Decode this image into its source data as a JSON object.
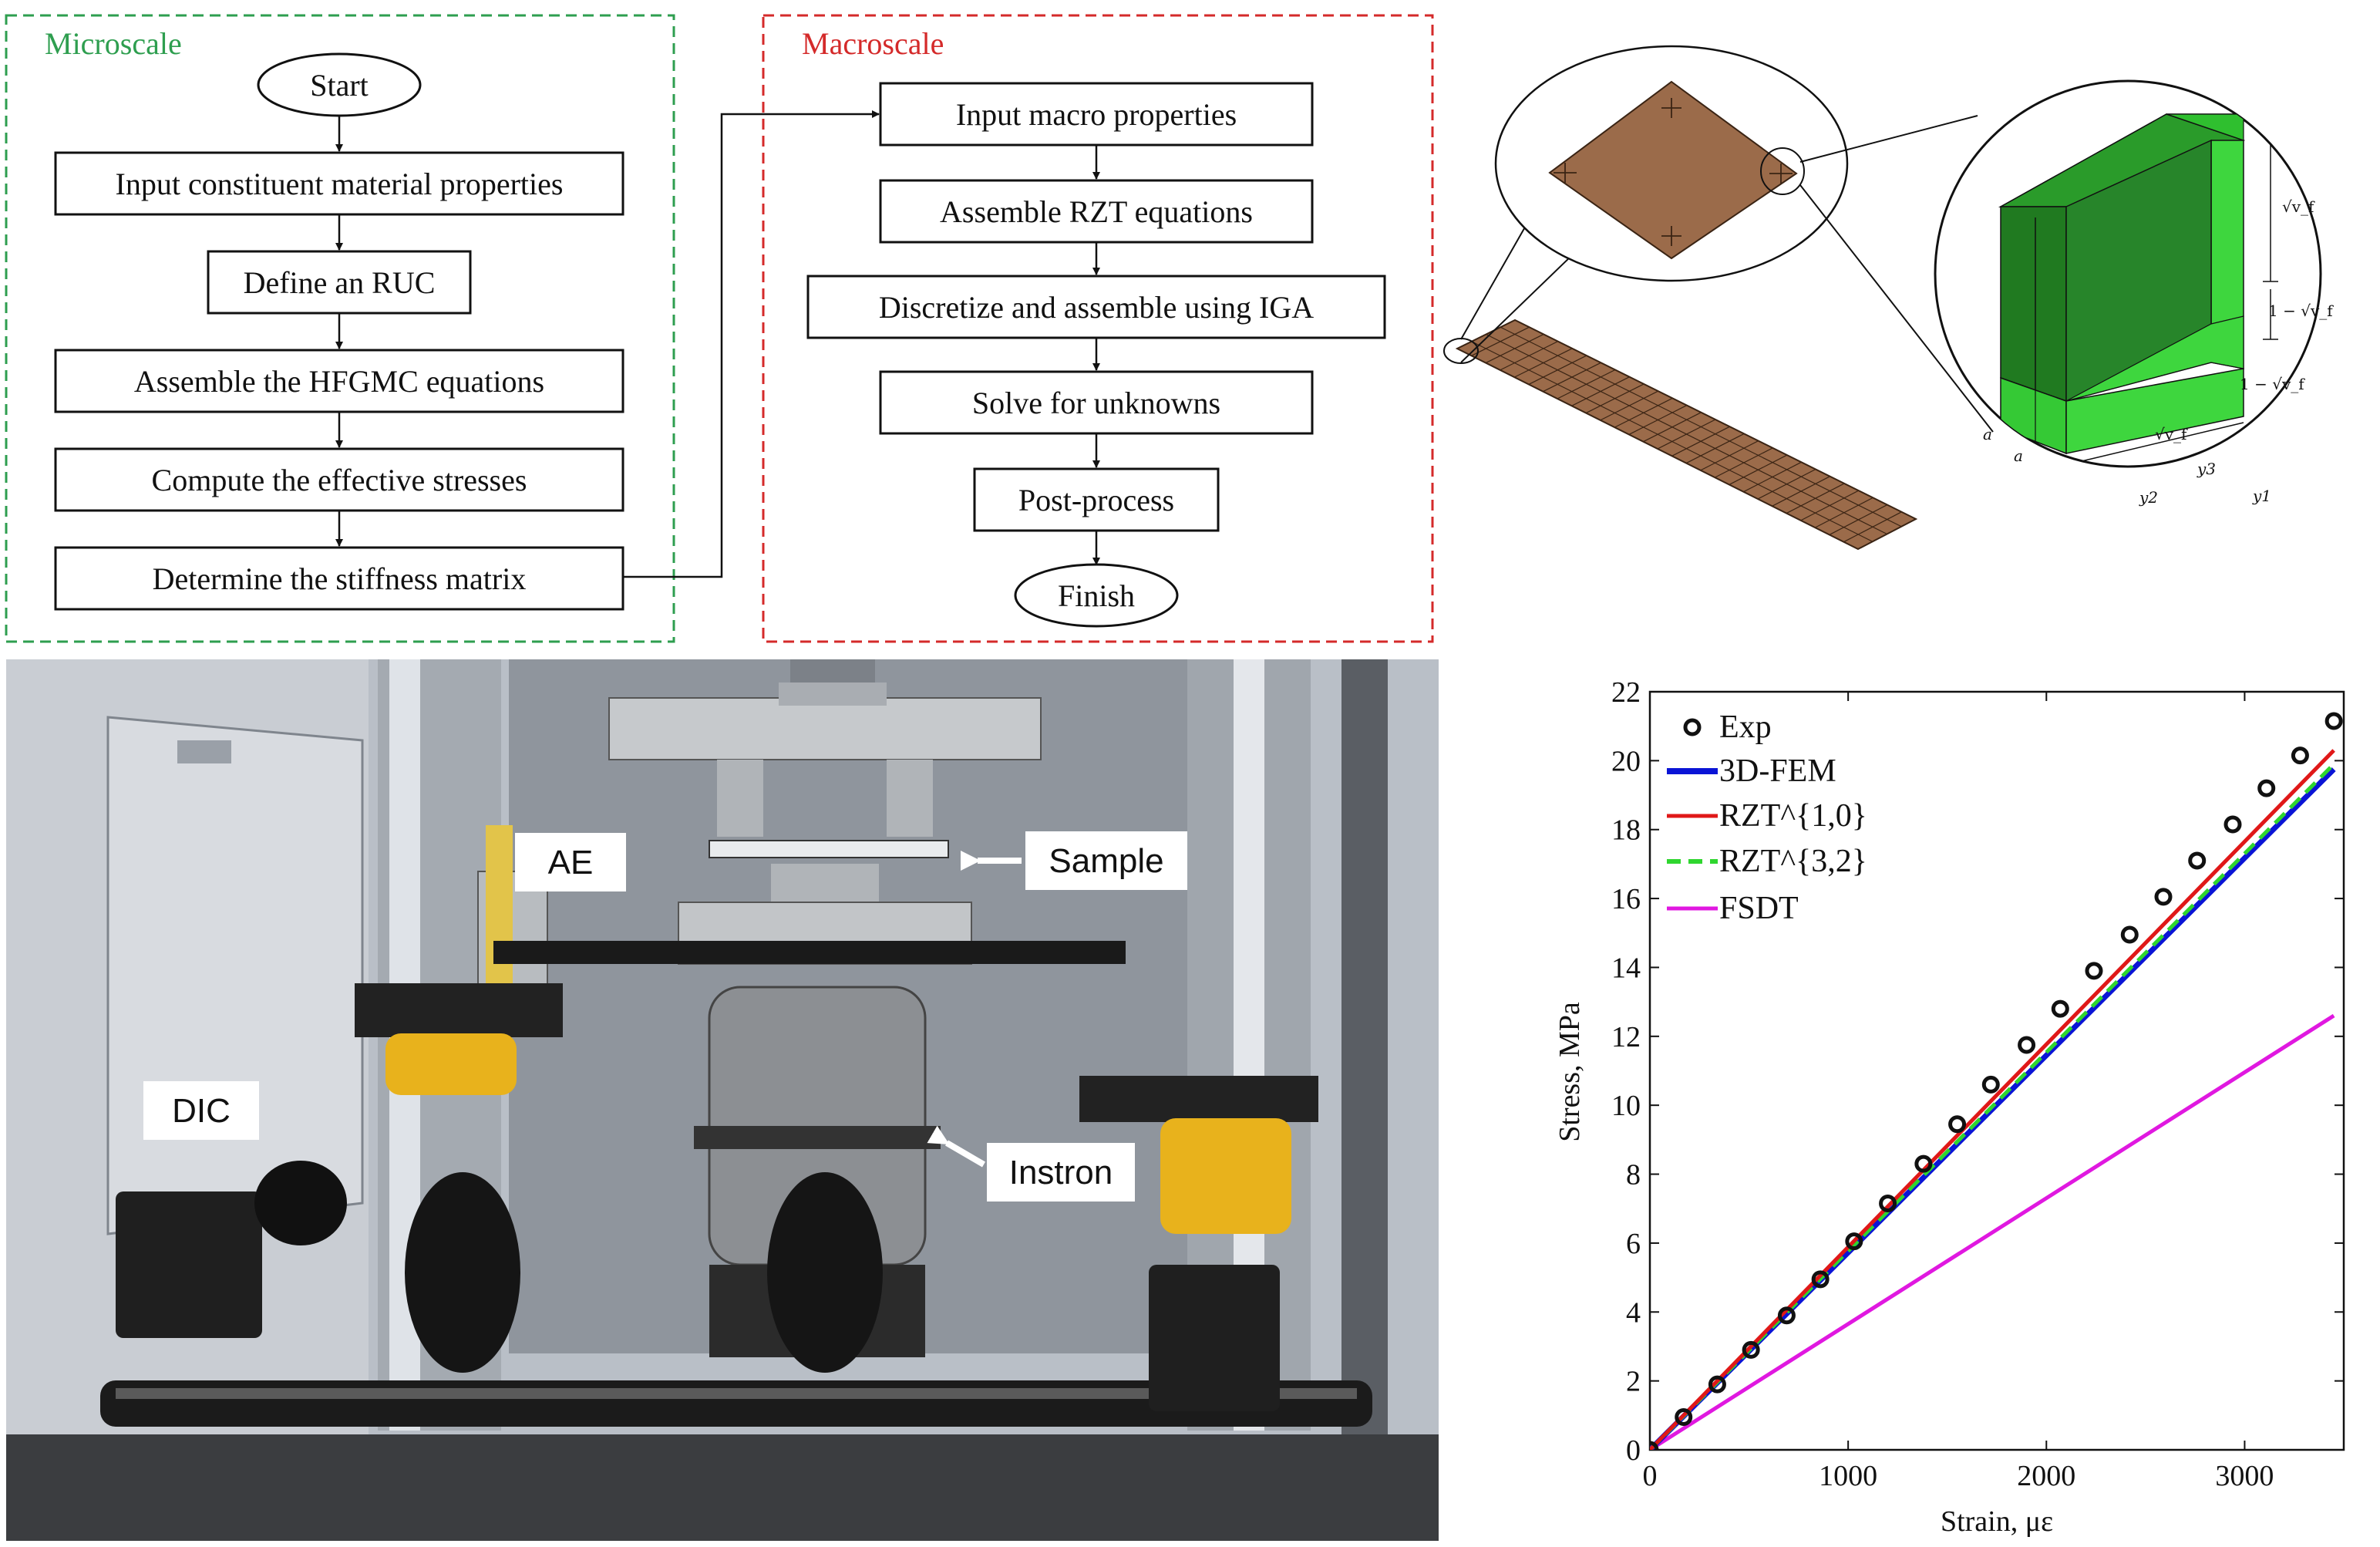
{
  "flowchart": {
    "microscale": {
      "title": "Microscale",
      "start": "Start",
      "steps": [
        "Input constituent material properties",
        "Define an RUC",
        "Assemble the HFGMC equations",
        "Compute the effective stresses",
        "Determine the stiffness matrix"
      ]
    },
    "macroscale": {
      "title": "Macroscale",
      "steps": [
        "Input macro properties",
        "Assemble RZT equations",
        "Discretize and assemble using IGA",
        "Solve for unknowns",
        "Post-process"
      ],
      "finish": "Finish"
    }
  },
  "ruc": {
    "dims": [
      "√v_f",
      "1 − √v_f",
      "1 − √v_f",
      "√v_f",
      "a",
      "a"
    ],
    "axes": [
      "y3",
      "y2",
      "y1"
    ]
  },
  "photo": {
    "labels": [
      "AE",
      "Sample",
      "DIC",
      "Instron"
    ]
  },
  "colors": {
    "microscale": "#2e9e4f",
    "macroscale": "#d42a2a",
    "plate": "#9b6b4a",
    "fiber_dark": "#1f7a1f",
    "fiber_light": "#3ed63e"
  },
  "chart_data": {
    "type": "line",
    "xlabel": "Strain, με",
    "ylabel": "Stress, MPa",
    "xlim": [
      0,
      3500
    ],
    "ylim": [
      0,
      22
    ],
    "xticks": [
      0,
      1000,
      2000,
      3000
    ],
    "yticks": [
      0,
      2,
      4,
      6,
      8,
      10,
      12,
      14,
      16,
      18,
      20,
      22
    ],
    "legend_position": "top-left",
    "series": [
      {
        "name": "Exp",
        "style": "circles",
        "color": "#111111",
        "x": [
          0,
          170,
          340,
          510,
          690,
          860,
          1030,
          1200,
          1380,
          1550,
          1720,
          1900,
          2070,
          2240,
          2420,
          2590,
          2760,
          2940,
          3110,
          3280,
          3450
        ],
        "y": [
          0,
          0.95,
          1.9,
          2.9,
          3.9,
          4.95,
          6.05,
          7.15,
          8.3,
          9.45,
          10.6,
          11.75,
          12.8,
          13.9,
          14.95,
          16.05,
          17.1,
          18.15,
          19.2,
          20.15,
          21.15
        ]
      },
      {
        "name": "3D-FEM",
        "style": "solid",
        "color": "#0a14d6",
        "x": [
          0,
          3450
        ],
        "y": [
          0,
          19.75
        ]
      },
      {
        "name": "RZT^{1,0}",
        "style": "solid",
        "color": "#e01818",
        "x": [
          0,
          3450
        ],
        "y": [
          0,
          20.3
        ]
      },
      {
        "name": "RZT^{3,2}",
        "style": "dashed",
        "color": "#2fd62f",
        "x": [
          0,
          3450
        ],
        "y": [
          0,
          19.9
        ]
      },
      {
        "name": "FSDT",
        "style": "solid",
        "color": "#e018e0",
        "x": [
          0,
          3450
        ],
        "y": [
          0,
          12.6
        ]
      }
    ]
  }
}
